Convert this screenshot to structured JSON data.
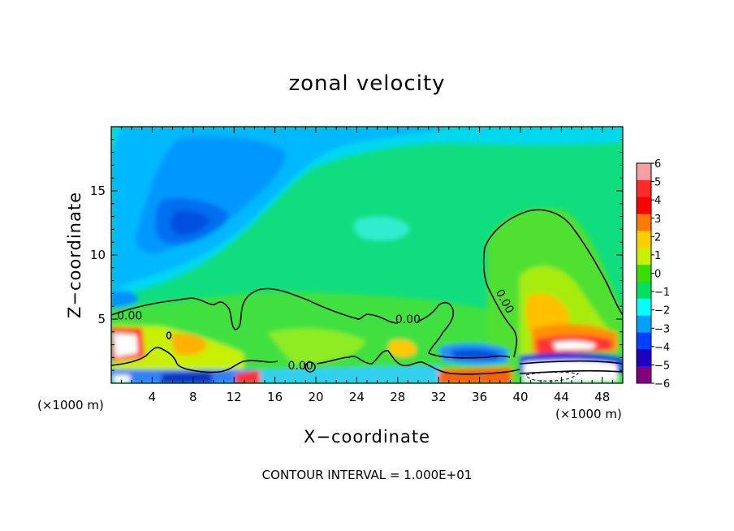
{
  "chart_data": {
    "type": "heatmap",
    "title": "zonal velocity",
    "xlabel": "X−coordinate",
    "ylabel": "Z−coordinate",
    "x_unit": "(×1000 m)",
    "y_unit": "(×1000 m)",
    "footer": "CONTOUR INTERVAL = 1.000E+01",
    "xlim": [
      0,
      50
    ],
    "ylim": [
      0,
      20
    ],
    "x_ticks": [
      4,
      8,
      12,
      16,
      20,
      24,
      28,
      32,
      36,
      40,
      44,
      48
    ],
    "y_ticks": [
      5,
      10,
      15
    ],
    "colorbar": {
      "ticks": [
        6,
        5,
        4,
        3,
        2,
        1,
        0,
        -1,
        -2,
        -3,
        -4,
        -5,
        -6
      ],
      "tick_labels": [
        "6",
        "5",
        "4",
        "3",
        "2",
        "1",
        "0",
        "−1",
        "−2",
        "−3",
        "−4",
        "−5",
        "−6"
      ],
      "colors": [
        "#f4a0a0",
        "#ff2a2a",
        "#ff0000",
        "#ff7a00",
        "#ffd000",
        "#c8f000",
        "#3cdc00",
        "#00e060",
        "#00ffff",
        "#00a0ff",
        "#0040ff",
        "#2000c0",
        "#800080"
      ]
    },
    "contour_labels": [
      {
        "text": "0.00",
        "x": 1.8,
        "z": 5.3
      },
      {
        "text": "0.00",
        "x": 29.0,
        "z": 5.0
      },
      {
        "text": "0.00",
        "x": 18.5,
        "z": 1.4
      },
      {
        "text": "0.00",
        "x": 38.5,
        "z": 6.4
      }
    ],
    "features": {
      "jet_core_min": {
        "x": 7.5,
        "z": 12.5,
        "value": -3
      },
      "upper_flow": {
        "value": -2
      },
      "positive_plume": {
        "x_range": [
          37,
          50
        ],
        "z_top": 13.5,
        "value": 1
      },
      "boundary_layer_max": {
        "x": 44,
        "z": 3,
        "value": 5
      }
    }
  }
}
